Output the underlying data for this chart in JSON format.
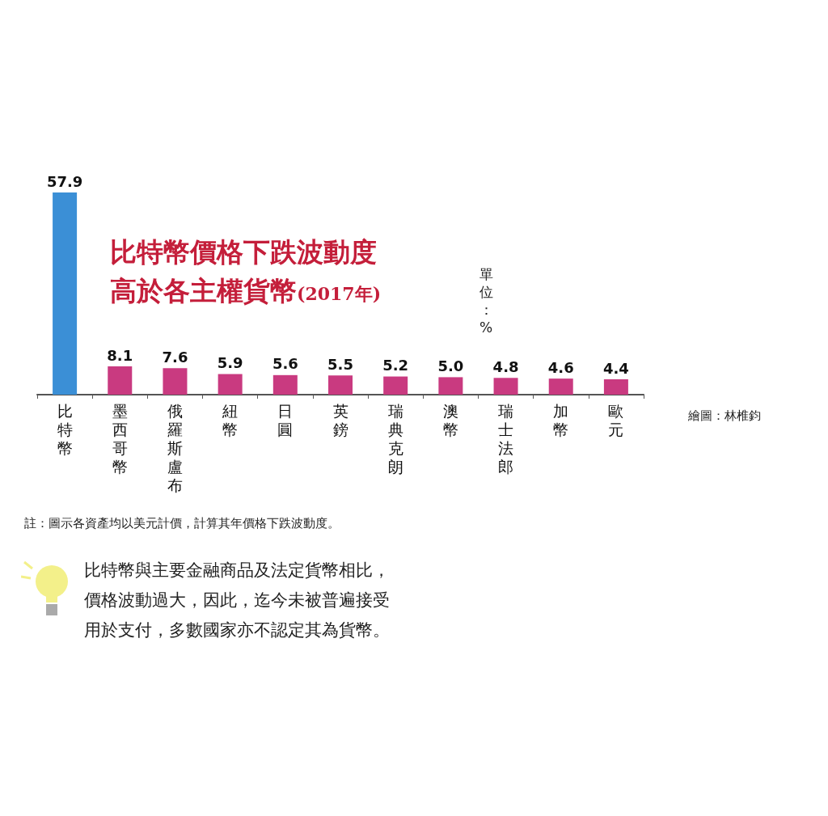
{
  "chart_data": {
    "type": "bar",
    "title": "比特幣價格下跌波動度高於各主權貨幣(2017年)",
    "ylabel": "單位：%",
    "categories": [
      "比特幣",
      "墨西哥幣",
      "俄羅斯盧布",
      "紐幣",
      "日圓",
      "英鎊",
      "瑞典克朗",
      "澳幣",
      "瑞士法郎",
      "加幣",
      "歐元"
    ],
    "values": [
      57.9,
      8.1,
      7.6,
      5.9,
      5.6,
      5.5,
      5.2,
      5.0,
      4.8,
      4.6,
      4.4
    ],
    "value_labels": [
      "57.9",
      "8.1",
      "7.6",
      "5.9",
      "5.6",
      "5.5",
      "5.2",
      "5.0",
      "4.8",
      "4.6",
      "4.4"
    ],
    "colors": [
      "#3b8fd6",
      "#c93a80",
      "#c93a80",
      "#c93a80",
      "#c93a80",
      "#c93a80",
      "#c93a80",
      "#c93a80",
      "#c93a80",
      "#c93a80",
      "#c93a80"
    ],
    "annotations": [
      "繪圖：林椎鈞",
      "註：圖示各資產均以美元計價，計算其年價格下跌波動度。",
      "比特幣與主要金融商品及法定貨幣相比，價格波動過大，因此，迄今未被普遍接受用於支付，多數國家亦不認定其為貨幣。"
    ],
    "grid": false
  }
}
